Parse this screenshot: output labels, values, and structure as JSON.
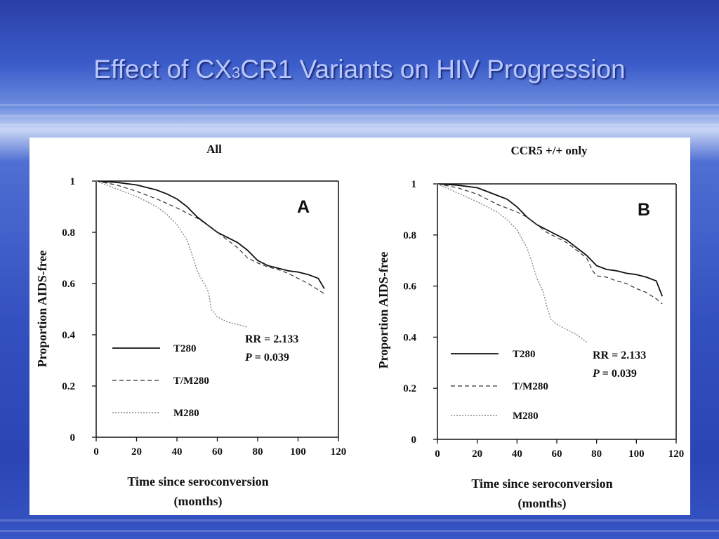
{
  "slide": {
    "title_main": "Effect of CX",
    "title_sub": "3",
    "title_rest": "CR1 Variants on HIV Progression"
  },
  "colors": {
    "background": "#3350bf",
    "title": "#b8c8ff",
    "figure_bg": "#ffffff",
    "T280": "#111111",
    "TM280": "#333333",
    "M280": "#888888"
  },
  "chart_data": [
    {
      "type": "line",
      "title": "All",
      "panel_label": "A",
      "xlabel_line1": "Time since seroconversion",
      "xlabel_line2": "(months)",
      "ylabel": "Proportion AIDS-free",
      "xlim": [
        0,
        120
      ],
      "ylim": [
        0,
        1
      ],
      "xticks": [
        "0",
        "20",
        "40",
        "60",
        "80",
        "100",
        "120"
      ],
      "yticks": [
        "0",
        "0.2",
        "0.4",
        "0.6",
        "0.8",
        "1"
      ],
      "legend_placement": "bottom-left",
      "stat_rr": "RR = 2.133",
      "stat_p_label": "P",
      "stat_p_value": " = 0.039",
      "series": [
        {
          "name": "T280",
          "style": "solid",
          "x": [
            0,
            10,
            20,
            25,
            30,
            35,
            40,
            45,
            50,
            55,
            60,
            65,
            70,
            75,
            80,
            85,
            90,
            95,
            100,
            105,
            110,
            113
          ],
          "y": [
            1,
            0.995,
            0.985,
            0.975,
            0.965,
            0.95,
            0.93,
            0.9,
            0.86,
            0.83,
            0.8,
            0.78,
            0.76,
            0.73,
            0.69,
            0.67,
            0.66,
            0.65,
            0.645,
            0.635,
            0.62,
            0.58
          ]
        },
        {
          "name": "T/M280",
          "style": "dashed",
          "x": [
            0,
            10,
            20,
            30,
            40,
            45,
            50,
            55,
            60,
            65,
            70,
            75,
            80,
            85,
            90,
            95,
            100,
            105,
            110,
            113
          ],
          "y": [
            1,
            0.985,
            0.96,
            0.93,
            0.895,
            0.875,
            0.855,
            0.83,
            0.8,
            0.77,
            0.74,
            0.7,
            0.68,
            0.665,
            0.655,
            0.64,
            0.62,
            0.6,
            0.575,
            0.56
          ]
        },
        {
          "name": "M280",
          "style": "dotted",
          "x": [
            0,
            10,
            20,
            30,
            35,
            40,
            45,
            48,
            50,
            52,
            55,
            56,
            57,
            60,
            65,
            70,
            75
          ],
          "y": [
            1,
            0.97,
            0.94,
            0.9,
            0.87,
            0.83,
            0.77,
            0.7,
            0.65,
            0.62,
            0.58,
            0.55,
            0.5,
            0.47,
            0.45,
            0.44,
            0.43
          ]
        }
      ]
    },
    {
      "type": "line",
      "title": "CCR5 +/+ only",
      "panel_label": "B",
      "xlabel_line1": "Time since seroconversion",
      "xlabel_line2": "(months)",
      "ylabel": "Proportion AIDS-free",
      "xlim": [
        0,
        120
      ],
      "ylim": [
        0,
        1
      ],
      "xticks": [
        "0",
        "20",
        "40",
        "60",
        "80",
        "100",
        "120"
      ],
      "yticks": [
        "0",
        "0.2",
        "0.4",
        "0.6",
        "0.8",
        "1"
      ],
      "legend_placement": "bottom-left",
      "stat_rr": "RR = 2.133",
      "stat_p_label": "P",
      "stat_p_value": " = 0.039",
      "series": [
        {
          "name": "T280",
          "style": "solid",
          "x": [
            0,
            10,
            20,
            25,
            30,
            35,
            40,
            45,
            50,
            55,
            60,
            65,
            70,
            75,
            80,
            85,
            90,
            95,
            100,
            105,
            110,
            113
          ],
          "y": [
            1,
            0.995,
            0.985,
            0.97,
            0.955,
            0.94,
            0.91,
            0.87,
            0.84,
            0.82,
            0.8,
            0.78,
            0.75,
            0.72,
            0.68,
            0.665,
            0.66,
            0.65,
            0.645,
            0.635,
            0.62,
            0.56
          ]
        },
        {
          "name": "T/M280",
          "style": "dashed",
          "x": [
            0,
            10,
            20,
            30,
            40,
            45,
            50,
            55,
            60,
            65,
            70,
            75,
            78,
            80,
            85,
            90,
            95,
            100,
            105,
            110,
            113
          ],
          "y": [
            1,
            0.985,
            0.96,
            0.92,
            0.89,
            0.87,
            0.84,
            0.81,
            0.79,
            0.77,
            0.74,
            0.71,
            0.66,
            0.64,
            0.635,
            0.62,
            0.61,
            0.59,
            0.575,
            0.55,
            0.53
          ]
        },
        {
          "name": "M280",
          "style": "dotted",
          "x": [
            0,
            10,
            20,
            30,
            35,
            40,
            45,
            48,
            50,
            53,
            55,
            57,
            60,
            65,
            70,
            75
          ],
          "y": [
            1,
            0.965,
            0.93,
            0.89,
            0.86,
            0.82,
            0.75,
            0.68,
            0.63,
            0.58,
            0.52,
            0.47,
            0.45,
            0.43,
            0.41,
            0.38
          ]
        }
      ]
    }
  ]
}
